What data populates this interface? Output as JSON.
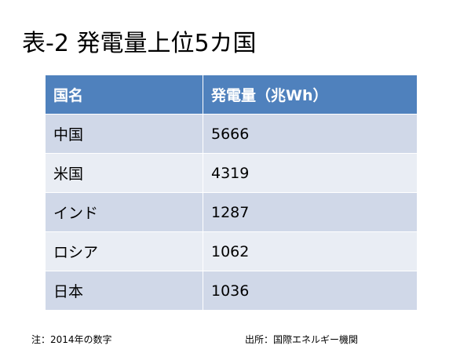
{
  "title": "表-2 発電量上位5カ国",
  "table": {
    "header": [
      "国名",
      "発電量（兆Wh）"
    ],
    "rows": [
      [
        "中国",
        5666
      ],
      [
        "米国",
        4319
      ],
      [
        "インド",
        1287
      ],
      [
        "ロシア",
        1062
      ],
      [
        "日本",
        1036
      ]
    ]
  },
  "notes": {
    "left": "注：2014年の数字",
    "right": "出所：国際エネルギー機関"
  }
}
